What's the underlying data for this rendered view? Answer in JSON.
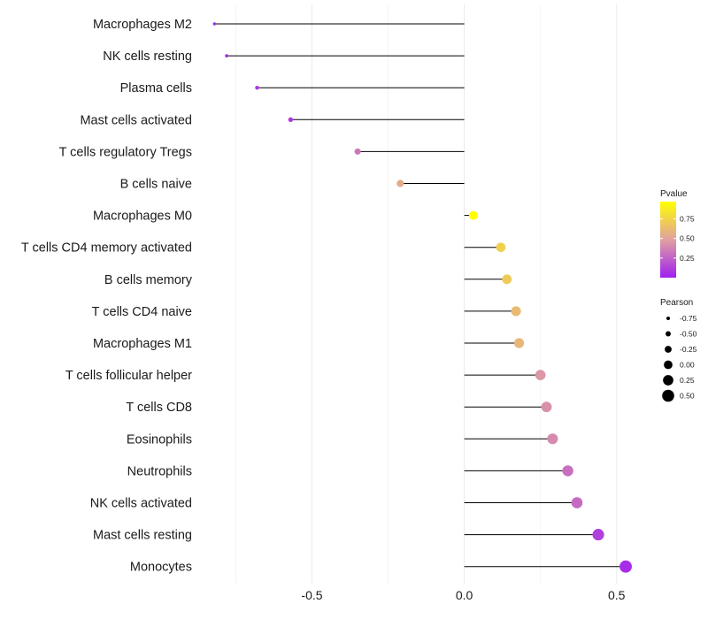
{
  "chart_data": {
    "type": "lollipop",
    "categories": [
      "Macrophages M2",
      "NK cells resting",
      "Plasma cells",
      "Mast cells activated",
      "T cells regulatory  Tregs",
      "B cells naive",
      "Macrophages M0",
      "T cells CD4 memory activated",
      "B cells memory",
      "T cells CD4 naive",
      "Macrophages M1",
      "T cells follicular helper",
      "T cells CD8",
      "Eosinophils",
      "Neutrophils",
      "NK cells activated",
      "Mast cells resting",
      "Monocytes"
    ],
    "pearson": [
      -0.82,
      -0.78,
      -0.68,
      -0.57,
      -0.35,
      -0.21,
      0.03,
      0.12,
      0.14,
      0.17,
      0.18,
      0.25,
      0.27,
      0.29,
      0.34,
      0.37,
      0.44,
      0.53
    ],
    "pvalue": [
      0.02,
      0.04,
      0.08,
      0.1,
      0.33,
      0.55,
      0.97,
      0.73,
      0.7,
      0.62,
      0.6,
      0.45,
      0.43,
      0.4,
      0.3,
      0.28,
      0.12,
      0.05
    ],
    "xlim": [
      -0.85,
      0.62
    ],
    "xticks": [
      -0.5,
      0.0,
      0.5
    ],
    "xtick_labels": [
      "-0.5",
      "0.0",
      "0.5"
    ],
    "grid": true,
    "legend_position": "right",
    "color_legend": {
      "title": "Pvalue",
      "ticks": [
        0.25,
        0.5,
        0.75
      ],
      "tick_labels": [
        "0.25",
        "0.50",
        "0.75"
      ],
      "range": [
        0.0,
        0.97
      ],
      "low_color": "#a020f0",
      "mid_color": "#e0a0a0",
      "high_color": "#ffff00"
    },
    "size_legend": {
      "title": "Pearson",
      "values": [
        -0.75,
        -0.5,
        -0.25,
        0.0,
        0.25,
        0.5
      ],
      "labels": [
        "-0.75",
        "-0.50",
        "-0.25",
        "0.00",
        "0.25",
        "0.50"
      ]
    }
  }
}
